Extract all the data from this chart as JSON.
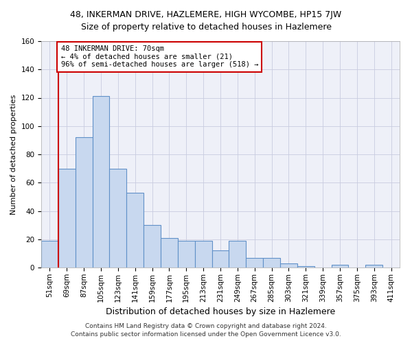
{
  "title": "48, INKERMAN DRIVE, HAZLEMERE, HIGH WYCOMBE, HP15 7JW",
  "subtitle": "Size of property relative to detached houses in Hazlemere",
  "xlabel": "Distribution of detached houses by size in Hazlemere",
  "ylabel": "Number of detached properties",
  "categories": [
    "51sqm",
    "69sqm",
    "87sqm",
    "105sqm",
    "123sqm",
    "141sqm",
    "159sqm",
    "177sqm",
    "195sqm",
    "213sqm",
    "231sqm",
    "249sqm",
    "267sqm",
    "285sqm",
    "303sqm",
    "321sqm",
    "339sqm",
    "357sqm",
    "375sqm",
    "393sqm",
    "411sqm"
  ],
  "values": [
    19,
    70,
    92,
    121,
    70,
    53,
    30,
    21,
    19,
    19,
    12,
    19,
    7,
    7,
    3,
    1,
    0,
    2,
    0,
    2,
    0
  ],
  "bar_color": "#c8d8ef",
  "bar_edge_color": "#6090c8",
  "marker_bar_index": 1,
  "marker_line_color": "#cc0000",
  "annotation_line1": "48 INKERMAN DRIVE: 70sqm",
  "annotation_line2": "← 4% of detached houses are smaller (21)",
  "annotation_line3": "96% of semi-detached houses are larger (518) →",
  "annotation_box_facecolor": "#ffffff",
  "annotation_box_edgecolor": "#cc0000",
  "ylim": [
    0,
    160
  ],
  "yticks": [
    0,
    20,
    40,
    60,
    80,
    100,
    120,
    140,
    160
  ],
  "footer1": "Contains HM Land Registry data © Crown copyright and database right 2024.",
  "footer2": "Contains public sector information licensed under the Open Government Licence v3.0.",
  "bg_color": "#eef0f8",
  "grid_color": "#c8cce0",
  "title_fontsize": 9,
  "subtitle_fontsize": 9,
  "ylabel_fontsize": 8,
  "xlabel_fontsize": 9,
  "tick_fontsize": 7.5,
  "annotation_fontsize": 7.5,
  "footer_fontsize": 6.5
}
